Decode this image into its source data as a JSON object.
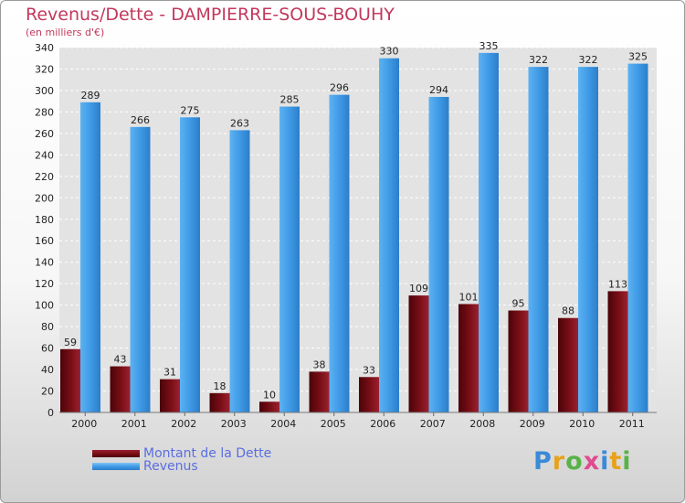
{
  "chart_data": {
    "type": "bar",
    "title": "Revenus/Dette - DAMPIERRE-SOUS-BOUHY",
    "subtitle": "(en milliers d'€)",
    "categories": [
      "2000",
      "2001",
      "2002",
      "2003",
      "2004",
      "2005",
      "2006",
      "2007",
      "2008",
      "2009",
      "2010",
      "2011"
    ],
    "series": [
      {
        "name": "Montant de la Dette",
        "values": [
          59,
          43,
          31,
          18,
          10,
          38,
          33,
          109,
          101,
          95,
          88,
          113
        ],
        "color": "#7a0e16"
      },
      {
        "name": "Revenus",
        "values": [
          289,
          266,
          275,
          263,
          285,
          296,
          330,
          294,
          335,
          322,
          322,
          325
        ],
        "color": "#3f9ae6"
      }
    ],
    "ylim": [
      0,
      340
    ],
    "ytick_step": 20,
    "grid": true,
    "legend_position": "bottom-left"
  },
  "logo": {
    "text": "Proxiti",
    "colors": [
      "#3a8ad8",
      "#e8a21b",
      "#58b347",
      "#e04a8e",
      "#3a8ad8",
      "#e8a21b",
      "#58b347"
    ]
  }
}
